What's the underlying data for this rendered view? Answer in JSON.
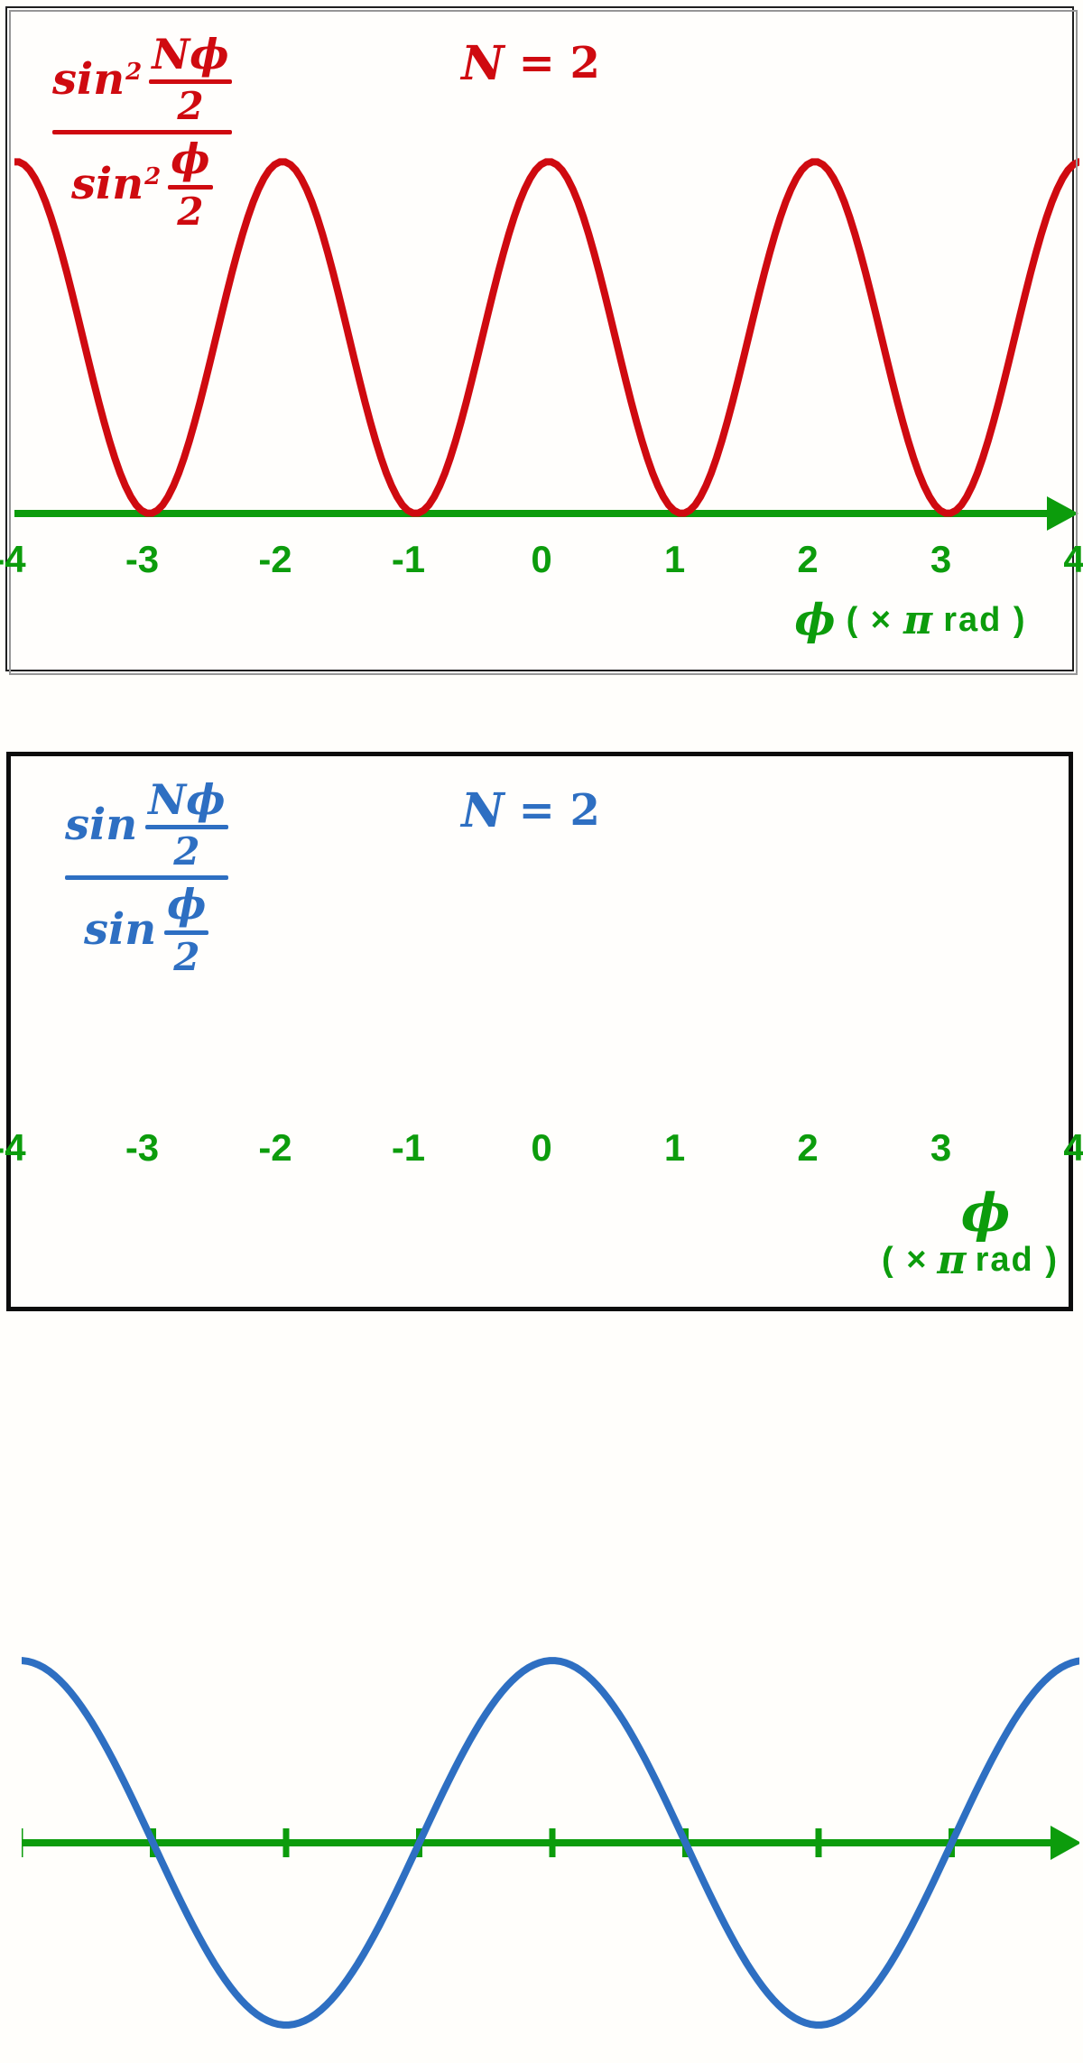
{
  "colors": {
    "red": "#cf0a10",
    "blue": "#2e6fc2",
    "green": "#0c9c0c"
  },
  "chart_data": [
    {
      "type": "line",
      "panel": "top",
      "title": "N = 2",
      "title_var": "N",
      "title_rest": "= 2",
      "series_name": "sin²(Nϕ/2) / sin²(ϕ/2), N = 2",
      "formula": {
        "fn": "sin",
        "sup": "2",
        "num_num": "Nϕ",
        "num_den": "2",
        "den_num": "ϕ",
        "den_den": "2"
      },
      "color": "#cf0a10",
      "axis_color": "#0c9c0c",
      "x": {
        "min": -4,
        "max": 4,
        "ticks": [
          -4,
          -3,
          -2,
          -1,
          0,
          1,
          2,
          3,
          4
        ],
        "tick_labels": [
          "-4",
          "-3",
          "-2",
          "-1",
          "0",
          "1",
          "2",
          "3",
          "4"
        ],
        "label": {
          "phi": "ϕ",
          "pre": "( ×",
          "pi": "π",
          "post": "rad )"
        }
      },
      "y": {
        "min": 0,
        "max": 4,
        "axis_at": 0,
        "grid": false,
        "ticks_shown": false
      },
      "curve": {
        "expression": "y = 2 + 2·cos(π·x)",
        "offset": 2,
        "amp": 2,
        "freq": 1
      },
      "points": {
        "x": [
          -4,
          -3.75,
          -3.5,
          -3.25,
          -3,
          -2.75,
          -2.5,
          -2.25,
          -2,
          -1.75,
          -1.5,
          -1.25,
          -1,
          -0.75,
          -0.5,
          -0.25,
          0,
          0.25,
          0.5,
          0.75,
          1,
          1.25,
          1.5,
          1.75,
          2,
          2.25,
          2.5,
          2.75,
          3,
          3.25,
          3.5,
          3.75,
          4
        ],
        "y": [
          4,
          3.414,
          2,
          0.586,
          0,
          0.586,
          2,
          3.414,
          4,
          3.414,
          2,
          0.586,
          0,
          0.586,
          2,
          3.414,
          4,
          3.414,
          2,
          0.586,
          0,
          0.586,
          2,
          3.414,
          4,
          3.414,
          2,
          0.586,
          0,
          0.586,
          2,
          3.414,
          4
        ]
      }
    },
    {
      "type": "line",
      "panel": "bottom",
      "title": "N = 2",
      "title_var": "N",
      "title_rest": "= 2",
      "series_name": "sin(Nϕ/2) / sin(ϕ/2), N = 2",
      "formula": {
        "fn": "sin",
        "sup": "",
        "num_num": "Nϕ",
        "num_den": "2",
        "den_num": "ϕ",
        "den_den": "2"
      },
      "color": "#2e6fc2",
      "axis_color": "#0c9c0c",
      "x": {
        "min": -4,
        "max": 4,
        "ticks": [
          -4,
          -3,
          -2,
          -1,
          0,
          1,
          2,
          3,
          4
        ],
        "tick_labels": [
          "-4",
          "-3",
          "-2",
          "-1",
          "0",
          "1",
          "2",
          "3",
          "4"
        ],
        "label": {
          "phi": "ϕ",
          "pre": "( ×",
          "pi": "π",
          "post": "rad )"
        }
      },
      "y": {
        "min": -2,
        "max": 2,
        "axis_at": 0,
        "grid": false,
        "ticks_shown": true
      },
      "curve": {
        "expression": "y = 2·cos(π·x/2)",
        "offset": 0,
        "amp": 2,
        "freq": 0.5
      },
      "points": {
        "x": [
          -4,
          -3.75,
          -3.5,
          -3.25,
          -3,
          -2.75,
          -2.5,
          -2.25,
          -2,
          -1.75,
          -1.5,
          -1.25,
          -1,
          -0.75,
          -0.5,
          -0.25,
          0,
          0.25,
          0.5,
          0.75,
          1,
          1.25,
          1.5,
          1.75,
          2,
          2.25,
          2.5,
          2.75,
          3,
          3.25,
          3.5,
          3.75,
          4
        ],
        "y": [
          2,
          1.848,
          1.414,
          0.765,
          0,
          -0.765,
          -1.414,
          -1.848,
          -2,
          -1.848,
          -1.414,
          -0.765,
          0,
          0.765,
          1.414,
          1.848,
          2,
          1.848,
          1.414,
          0.765,
          0,
          -0.765,
          -1.414,
          -1.848,
          -2,
          -1.848,
          -1.414,
          -0.765,
          0,
          0.765,
          1.414,
          1.848,
          2
        ]
      }
    }
  ]
}
